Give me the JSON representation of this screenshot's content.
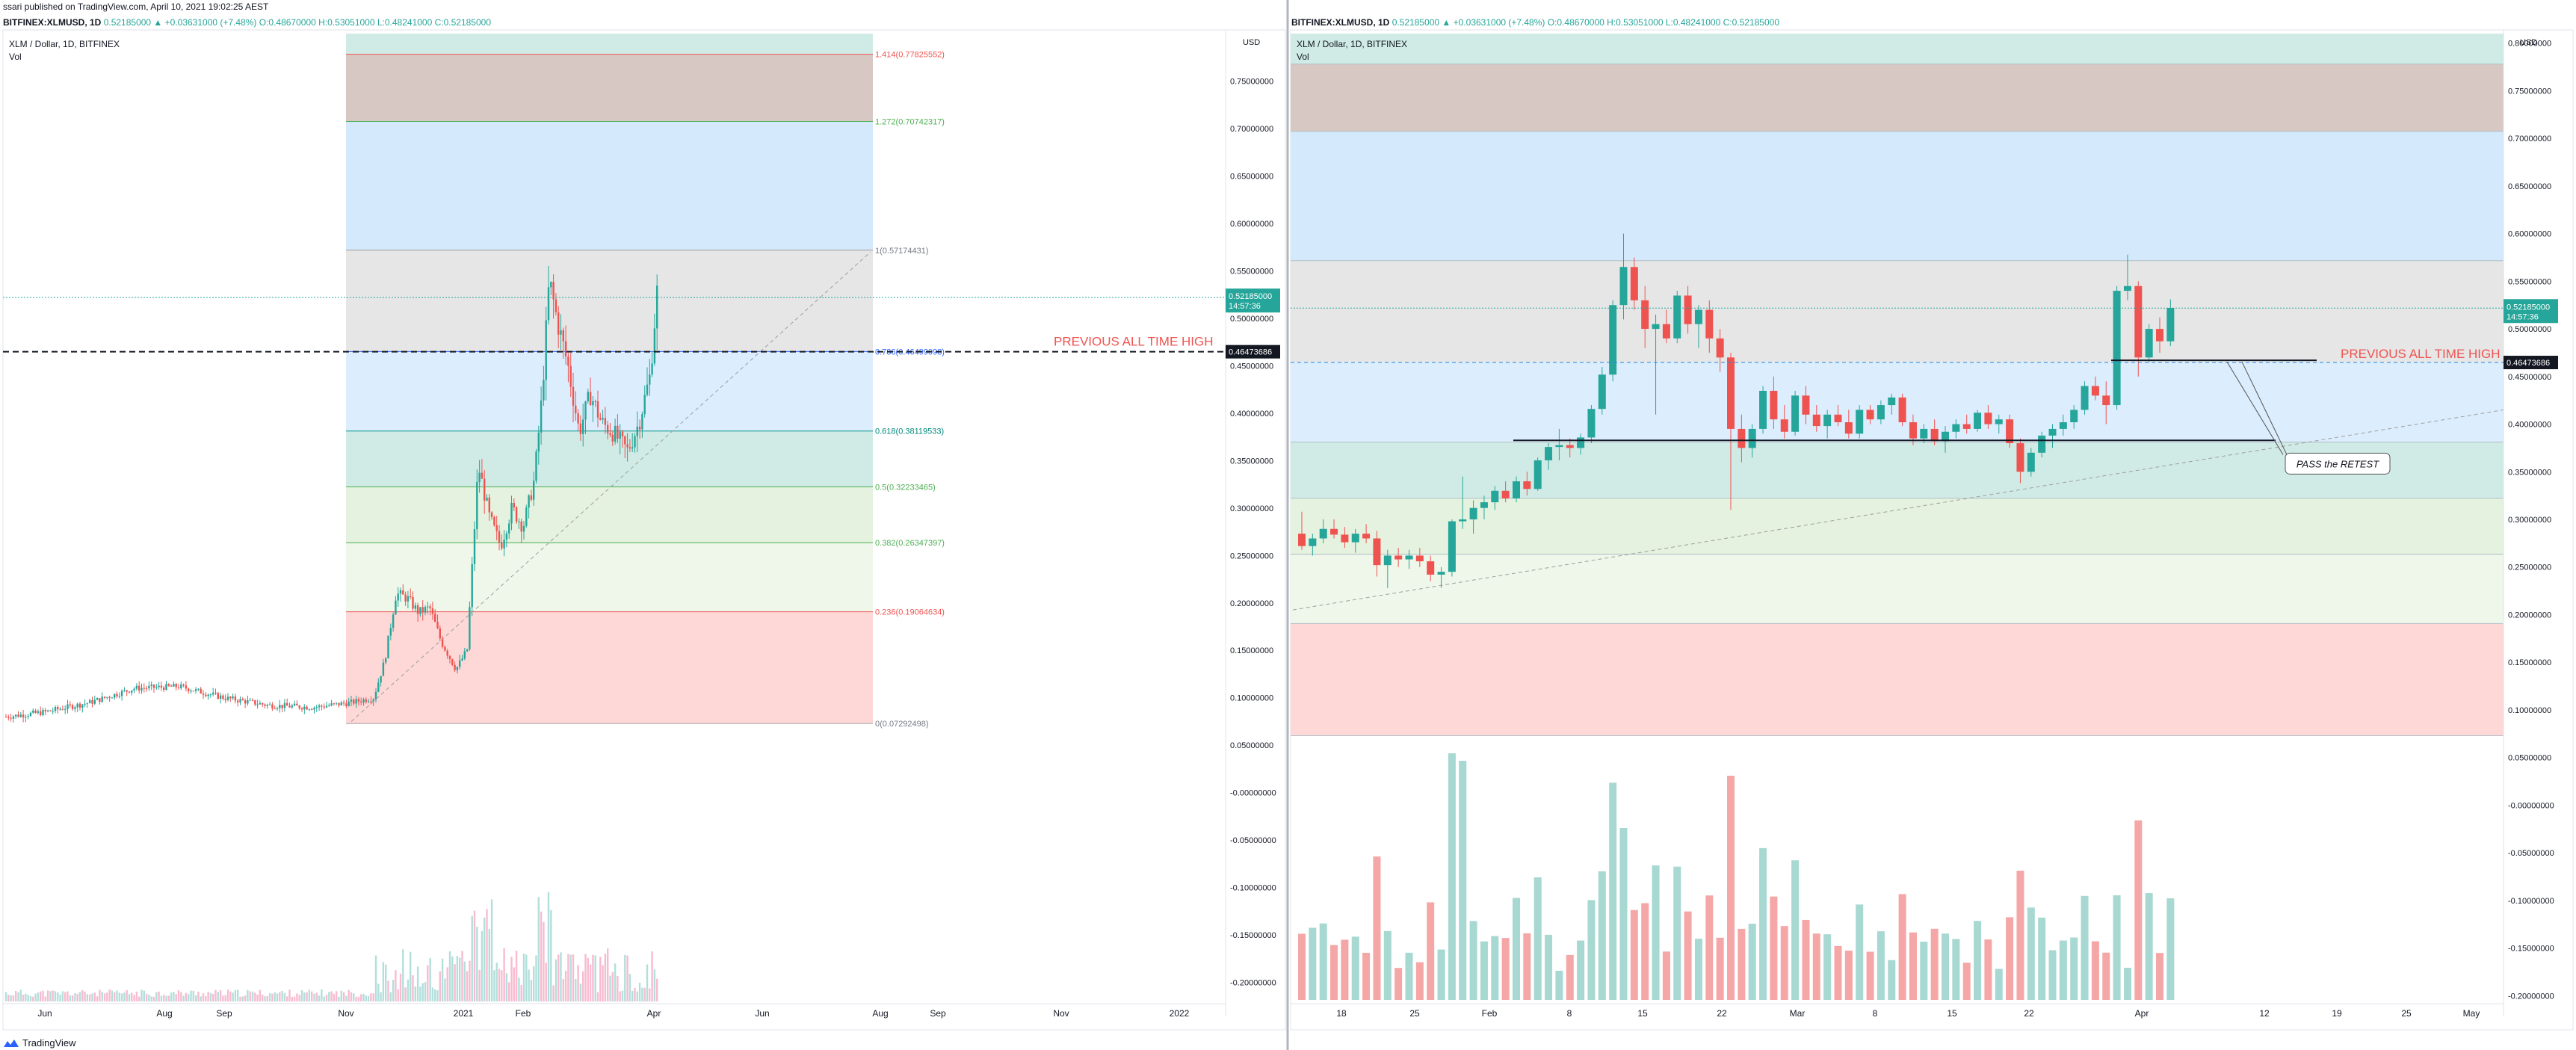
{
  "header": {
    "published": "ssari published on TradingView.com, April 10, 2021 19:02:25 AEST",
    "left_symbol": "BITFINEX:XLMUSD, 1D",
    "right_symbol": "BITFINEX:XLMUSD, 1D",
    "ohlc": "0.52185000 ▲ +0.03631000 (+7.48%) O:0.48670000 H:0.53051000 L:0.48241000 C:0.52185000"
  },
  "footer": {
    "brand": "TradingView"
  },
  "colors": {
    "up": "#26a69a",
    "down": "#ef5350",
    "fib_label_red": "#ef5350"
  },
  "chart_data": [
    {
      "type": "candlestick",
      "title": "XLM / Dollar, 1D, BITFINEX",
      "subtitle": "Vol",
      "currency": "USD",
      "price_axis_ticks": [
        "0.75000000",
        "0.70000000",
        "0.65000000",
        "0.60000000",
        "0.55000000",
        "0.50000000",
        "0.45000000",
        "0.40000000",
        "0.35000000",
        "0.30000000",
        "0.25000000",
        "0.20000000",
        "0.15000000",
        "0.10000000",
        "0.05000000",
        "-0.00000000",
        "-0.05000000",
        "-0.10000000",
        "-0.15000000",
        "-0.20000000"
      ],
      "time_axis_ticks": [
        "Jun",
        "Aug",
        "Sep",
        "Nov",
        "2021",
        "Feb",
        "Apr",
        "Jun",
        "Aug",
        "Sep",
        "Nov",
        "2022"
      ],
      "ylim": [
        -0.22,
        0.8
      ],
      "fib_levels": [
        {
          "label": "1.414(0.77825552)",
          "value": 0.77825552
        },
        {
          "label": "1.272(0.70742317)",
          "value": 0.70742317
        },
        {
          "label": "1(0.57174431)",
          "value": 0.57174431
        },
        {
          "label": "0.786(0.46499098)",
          "value": 0.46499098
        },
        {
          "label": "0.618(0.38119533)",
          "value": 0.38119533
        },
        {
          "label": "0.5(0.32233465)",
          "value": 0.32233465
        },
        {
          "label": "0.382(0.26347397)",
          "value": 0.26347397
        },
        {
          "label": "0.236(0.19064634)",
          "value": 0.19064634
        },
        {
          "label": "0(0.07292498)",
          "value": 0.07292498
        }
      ],
      "annotation": "PREVIOUS ALL TIME HIGH",
      "ath_value": 0.46473686,
      "ath_badge": "0.46473686",
      "last_price_badge": "0.52185000",
      "countdown": "14:57:36"
    },
    {
      "type": "candlestick",
      "title": "XLM / Dollar, 1D, BITFINEX",
      "subtitle": "Vol",
      "currency": "USD",
      "price_axis_ticks": [
        "0.80000000",
        "0.75000000",
        "0.70000000",
        "0.65000000",
        "0.60000000",
        "0.55000000",
        "0.50000000",
        "0.45000000",
        "0.40000000",
        "0.35000000",
        "0.30000000",
        "0.25000000",
        "0.20000000",
        "0.15000000",
        "0.10000000",
        "0.05000000",
        "-0.00000000",
        "-0.05000000",
        "-0.10000000",
        "-0.15000000",
        "-0.20000000"
      ],
      "time_axis_ticks": [
        "18",
        "25",
        "Feb",
        "8",
        "15",
        "22",
        "Mar",
        "8",
        "15",
        "22",
        "Apr",
        "12",
        "19",
        "25",
        "May"
      ],
      "ylim": [
        -0.21,
        0.81
      ],
      "annotation": "PREVIOUS ALL TIME HIGH",
      "callout": "PASS the RETEST",
      "ath_value": 0.46473686,
      "ath_badge": "0.46473686",
      "last_price_badge": "0.52185000",
      "countdown": "14:57:36",
      "candles": [
        [
          0.285,
          0.308,
          0.268,
          0.272
        ],
        [
          0.272,
          0.285,
          0.262,
          0.28
        ],
        [
          0.28,
          0.3,
          0.275,
          0.29
        ],
        [
          0.29,
          0.3,
          0.28,
          0.284
        ],
        [
          0.284,
          0.292,
          0.27,
          0.276
        ],
        [
          0.276,
          0.29,
          0.265,
          0.285
        ],
        [
          0.285,
          0.295,
          0.275,
          0.28
        ],
        [
          0.28,
          0.288,
          0.24,
          0.252
        ],
        [
          0.252,
          0.268,
          0.228,
          0.262
        ],
        [
          0.262,
          0.27,
          0.25,
          0.258
        ],
        [
          0.258,
          0.268,
          0.248,
          0.262
        ],
        [
          0.262,
          0.27,
          0.25,
          0.256
        ],
        [
          0.256,
          0.262,
          0.235,
          0.242
        ],
        [
          0.242,
          0.25,
          0.228,
          0.245
        ],
        [
          0.245,
          0.3,
          0.24,
          0.298
        ],
        [
          0.298,
          0.345,
          0.29,
          0.3
        ],
        [
          0.3,
          0.32,
          0.285,
          0.312
        ],
        [
          0.312,
          0.325,
          0.3,
          0.318
        ],
        [
          0.318,
          0.335,
          0.31,
          0.33
        ],
        [
          0.33,
          0.34,
          0.318,
          0.322
        ],
        [
          0.322,
          0.345,
          0.318,
          0.34
        ],
        [
          0.34,
          0.35,
          0.325,
          0.332
        ],
        [
          0.332,
          0.365,
          0.33,
          0.362
        ],
        [
          0.362,
          0.38,
          0.352,
          0.376
        ],
        [
          0.376,
          0.395,
          0.362,
          0.378
        ],
        [
          0.378,
          0.385,
          0.365,
          0.375
        ],
        [
          0.375,
          0.39,
          0.368,
          0.386
        ],
        [
          0.386,
          0.42,
          0.38,
          0.416
        ],
        [
          0.416,
          0.46,
          0.41,
          0.452
        ],
        [
          0.452,
          0.53,
          0.445,
          0.525
        ],
        [
          0.525,
          0.6,
          0.51,
          0.565
        ],
        [
          0.565,
          0.575,
          0.52,
          0.53
        ],
        [
          0.53,
          0.545,
          0.48,
          0.5
        ],
        [
          0.5,
          0.515,
          0.41,
          0.505
        ],
        [
          0.505,
          0.52,
          0.485,
          0.49
        ],
        [
          0.49,
          0.54,
          0.485,
          0.535
        ],
        [
          0.535,
          0.545,
          0.495,
          0.505
        ],
        [
          0.505,
          0.525,
          0.48,
          0.52
        ],
        [
          0.52,
          0.53,
          0.475,
          0.49
        ],
        [
          0.49,
          0.5,
          0.455,
          0.47
        ],
        [
          0.47,
          0.475,
          0.31,
          0.395
        ],
        [
          0.395,
          0.41,
          0.36,
          0.375
        ],
        [
          0.375,
          0.4,
          0.365,
          0.395
        ],
        [
          0.395,
          0.44,
          0.39,
          0.435
        ],
        [
          0.435,
          0.45,
          0.395,
          0.405
        ],
        [
          0.405,
          0.42,
          0.385,
          0.392
        ],
        [
          0.392,
          0.435,
          0.388,
          0.43
        ],
        [
          0.43,
          0.44,
          0.4,
          0.41
        ],
        [
          0.41,
          0.42,
          0.392,
          0.398
        ],
        [
          0.398,
          0.415,
          0.385,
          0.41
        ],
        [
          0.41,
          0.42,
          0.398,
          0.402
        ],
        [
          0.402,
          0.415,
          0.385,
          0.39
        ],
        [
          0.39,
          0.42,
          0.385,
          0.415
        ],
        [
          0.415,
          0.42,
          0.4,
          0.405
        ],
        [
          0.405,
          0.425,
          0.4,
          0.42
        ],
        [
          0.42,
          0.432,
          0.41,
          0.428
        ],
        [
          0.428,
          0.432,
          0.398,
          0.402
        ],
        [
          0.402,
          0.41,
          0.378,
          0.385
        ],
        [
          0.385,
          0.4,
          0.38,
          0.395
        ],
        [
          0.395,
          0.405,
          0.378,
          0.382
        ],
        [
          0.382,
          0.398,
          0.37,
          0.392
        ],
        [
          0.392,
          0.405,
          0.385,
          0.4
        ],
        [
          0.4,
          0.41,
          0.39,
          0.395
        ],
        [
          0.395,
          0.415,
          0.392,
          0.412
        ],
        [
          0.412,
          0.42,
          0.395,
          0.4
        ],
        [
          0.4,
          0.41,
          0.39,
          0.405
        ],
        [
          0.405,
          0.41,
          0.375,
          0.38
        ],
        [
          0.38,
          0.385,
          0.338,
          0.35
        ],
        [
          0.35,
          0.375,
          0.345,
          0.37
        ],
        [
          0.37,
          0.392,
          0.365,
          0.388
        ],
        [
          0.388,
          0.4,
          0.375,
          0.395
        ],
        [
          0.395,
          0.41,
          0.388,
          0.402
        ],
        [
          0.402,
          0.42,
          0.395,
          0.415
        ],
        [
          0.415,
          0.445,
          0.41,
          0.44
        ],
        [
          0.44,
          0.45,
          0.425,
          0.43
        ],
        [
          0.43,
          0.445,
          0.4,
          0.42
        ],
        [
          0.42,
          0.545,
          0.415,
          0.54
        ],
        [
          0.54,
          0.578,
          0.53,
          0.545
        ],
        [
          0.545,
          0.55,
          0.45,
          0.47
        ],
        [
          0.47,
          0.505,
          0.465,
          0.5
        ],
        [
          0.5,
          0.512,
          0.475,
          0.487
        ],
        [
          0.487,
          0.531,
          0.482,
          0.522
        ]
      ]
    }
  ]
}
